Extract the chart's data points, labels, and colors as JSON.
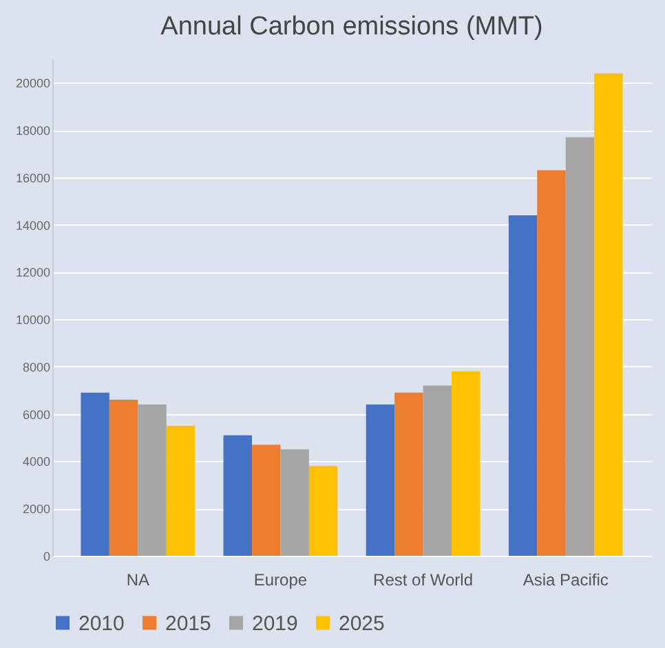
{
  "chart_data": {
    "type": "bar",
    "title": "Annual Carbon emissions (MMT)",
    "categories": [
      "NA",
      "Europe",
      "Rest of World",
      "Asia Pacific"
    ],
    "series": [
      {
        "name": "2010",
        "color": "#4472c4",
        "values": [
          6900,
          5100,
          6400,
          14400
        ]
      },
      {
        "name": "2015",
        "color": "#ed7d31",
        "values": [
          6600,
          4700,
          6900,
          16300
        ]
      },
      {
        "name": "2019",
        "color": "#a5a5a5",
        "values": [
          6400,
          4500,
          7200,
          17700
        ]
      },
      {
        "name": "2025",
        "color": "#ffc000",
        "values": [
          5500,
          3800,
          7800,
          20400
        ]
      }
    ],
    "ylim": [
      0,
      21000
    ],
    "yticks": [
      0,
      2000,
      4000,
      6000,
      8000,
      10000,
      12000,
      14000,
      16000,
      18000,
      20000
    ],
    "grid": "y",
    "legend": "bottom"
  }
}
